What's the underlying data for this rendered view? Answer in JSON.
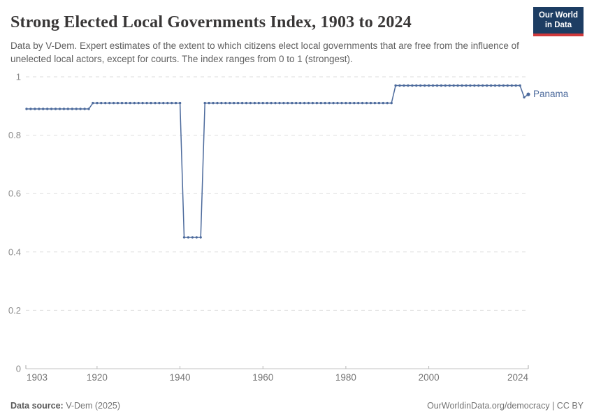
{
  "header": {
    "title": "Strong Elected Local Governments Index, 1903 to 2024",
    "subtitle": "Data by V-Dem. Expert estimates of the extent to which citizens elect local governments that are free from the influence of unelected local actors, except for courts. The index ranges from 0 to 1 (strongest).",
    "logo": {
      "line1": "Our World",
      "line2": "in Data"
    }
  },
  "chart_data": {
    "type": "line",
    "title": "Strong Elected Local Governments Index, 1903 to 2024",
    "xlabel": "",
    "ylabel": "",
    "xlim": [
      1903,
      2024
    ],
    "ylim": [
      0,
      1
    ],
    "xticks": [
      1903,
      1920,
      1940,
      1960,
      1980,
      2000,
      2024
    ],
    "yticks": [
      0,
      0.2,
      0.4,
      0.6,
      0.8,
      1
    ],
    "grid": "horizontal-dashed",
    "legend_position": "end-of-line-label",
    "colors": {
      "line": "#4c6a9c",
      "gridline": "#dedede",
      "axis": "#c3c3c3",
      "tick_label_x": "#757575",
      "tick_label_y": "#8b8b8b"
    },
    "series": [
      {
        "name": "Panama",
        "color": "#4c6a9c",
        "runs": [
          {
            "start_year": 1903,
            "end_year": 1918,
            "value": 0.89
          },
          {
            "start_year": 1919,
            "end_year": 1940,
            "value": 0.91
          },
          {
            "start_year": 1941,
            "end_year": 1945,
            "value": 0.45
          },
          {
            "start_year": 1946,
            "end_year": 1991,
            "value": 0.91
          },
          {
            "start_year": 1992,
            "end_year": 2022,
            "value": 0.97
          },
          {
            "start_year": 2023,
            "end_year": 2023,
            "value": 0.93
          },
          {
            "start_year": 2024,
            "end_year": 2024,
            "value": 0.94
          }
        ]
      }
    ]
  },
  "footer": {
    "source_label": "Data source:",
    "source_value": "V-Dem (2025)",
    "link": "OurWorldinData.org/democracy | CC BY"
  }
}
